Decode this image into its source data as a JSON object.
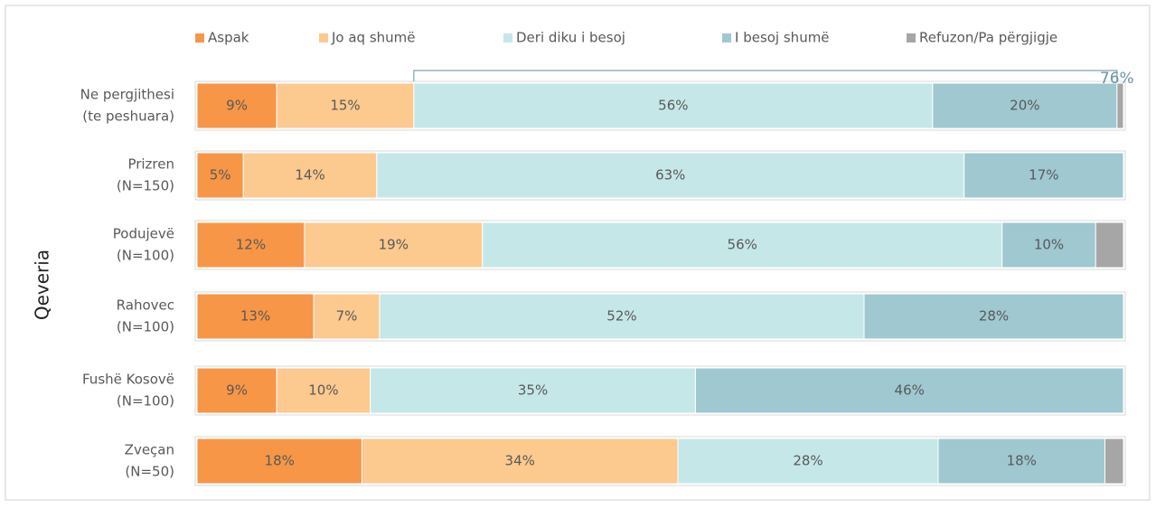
{
  "chart_data": {
    "type": "stacked-bar-horizontal",
    "y_label": "Qeveria",
    "categories": [
      [
        "Ne pergjithesi",
        "(te peshuara)"
      ],
      [
        "Prizren",
        "(N=150)"
      ],
      [
        "Podujevë",
        "(N=100)"
      ],
      [
        "Rahovec",
        "(N=100)"
      ],
      [
        "Fushë Kosovë",
        "(N=100)"
      ],
      [
        "Zveçan",
        "(N=50)"
      ]
    ],
    "xlim": [
      0,
      100
    ],
    "series": [
      {
        "name": "Aspak",
        "color": "#f79646",
        "values": [
          8.6,
          5.0,
          11.6,
          12.6,
          8.6,
          17.8
        ],
        "value_labels": [
          "9%",
          "5%",
          "12%",
          "13%",
          "9%",
          "18%"
        ]
      },
      {
        "name": "Jo aq shumë",
        "color": "#fcc98e",
        "values": [
          14.8,
          14.4,
          19.2,
          7.1,
          10.1,
          34.1
        ],
        "value_labels": [
          "15%",
          "14%",
          "19%",
          "7%",
          "10%",
          "34%"
        ]
      },
      {
        "name": "Deri diku i besoj",
        "color": "#c6e7e7",
        "values": [
          56.0,
          63.4,
          56.1,
          52.3,
          35.1,
          28.1
        ],
        "value_labels": [
          "56%",
          "63%",
          "56%",
          "52%",
          "35%",
          "28%"
        ]
      },
      {
        "name": "I besoj shumë",
        "color": "#9fc8d1",
        "values": [
          19.9,
          17.2,
          10.1,
          28.0,
          46.2,
          18.0
        ],
        "value_labels": [
          "20%",
          "17%",
          "10%",
          "28%",
          "46%",
          "18%"
        ]
      },
      {
        "name": "Refuzon/Pa përgjigje",
        "color": "#a6a6a6",
        "values": [
          0.7,
          0,
          3.0,
          0,
          0,
          2.0
        ],
        "value_labels": [
          null,
          null,
          null,
          null,
          null,
          null
        ]
      }
    ],
    "annotation": "76%",
    "legend": "top"
  }
}
